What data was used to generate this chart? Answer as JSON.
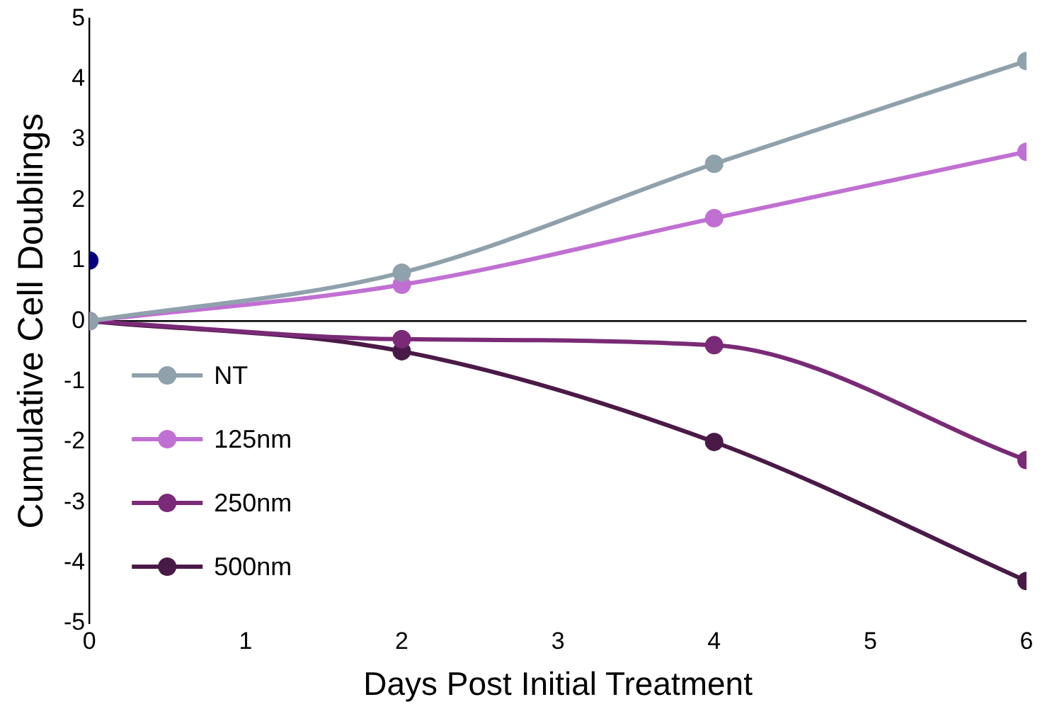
{
  "chart_data": {
    "type": "line",
    "xlabel": "Days Post Initial Treatment",
    "ylabel": "Cumulative Cell Doublings",
    "x": [
      0,
      2,
      4,
      6
    ],
    "series": [
      {
        "name": "NT",
        "color": "#8fa1ab",
        "values": [
          0,
          0.8,
          2.6,
          4.3
        ]
      },
      {
        "name": "125nm",
        "color": "#c070d2",
        "values": [
          0,
          0.6,
          1.7,
          2.8
        ]
      },
      {
        "name": "250nm",
        "color": "#7a2a76",
        "values": [
          0,
          -0.3,
          -0.4,
          -2.3
        ]
      },
      {
        "name": "500nm",
        "color": "#4a1a47",
        "values": [
          0,
          -0.5,
          -2.0,
          -4.3
        ]
      },
      {
        "type": "scatter",
        "color": "#000080",
        "x": [
          0
        ],
        "values": [
          1
        ]
      }
    ],
    "xlim": [
      0,
      6
    ],
    "xticks": [
      0,
      1,
      2,
      3,
      4,
      5,
      6
    ],
    "ylim": [
      -5,
      5
    ],
    "yticks": [
      -5,
      -4,
      -3,
      -2,
      -1,
      0,
      1,
      2,
      3,
      4,
      5
    ],
    "legend": "bottom left",
    "marker": "circle",
    "line_style": "solid"
  }
}
